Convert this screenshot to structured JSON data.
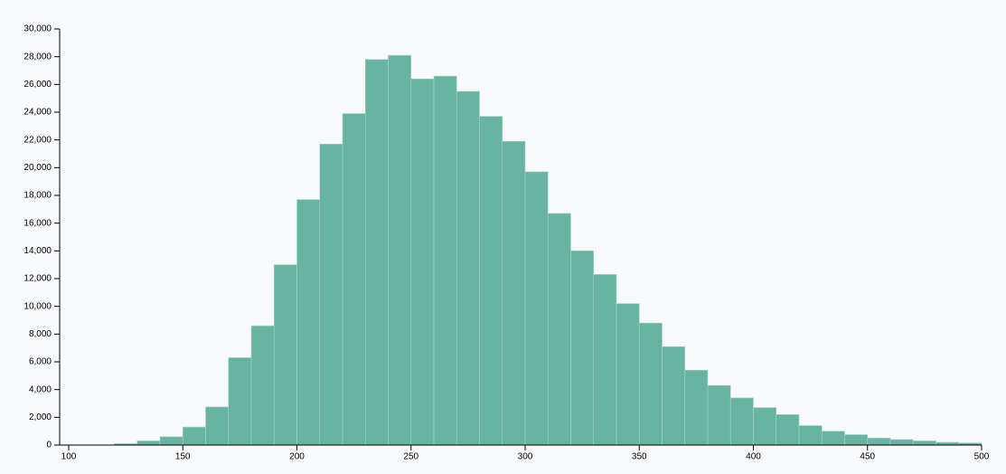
{
  "chart_data": {
    "type": "histogram",
    "bins": [
      120,
      130,
      140,
      150,
      160,
      170,
      180,
      190,
      200,
      210,
      220,
      230,
      240,
      250,
      260,
      270,
      280,
      290,
      300,
      310,
      320,
      330,
      340,
      350,
      360,
      370,
      380,
      390,
      400,
      410,
      420,
      430,
      440,
      450,
      460,
      470,
      480,
      490,
      500
    ],
    "values": [
      100,
      300,
      600,
      1300,
      2750,
      6300,
      8600,
      13000,
      17700,
      21700,
      23900,
      27800,
      28100,
      26400,
      26600,
      25500,
      23700,
      21900,
      19700,
      16700,
      14000,
      12300,
      10200,
      8800,
      7100,
      5400,
      4300,
      3400,
      2700,
      2200,
      1400,
      1000,
      750,
      500,
      400,
      300,
      200,
      150
    ],
    "color": "#69b3a2",
    "xlim": [
      100,
      500
    ],
    "xticks": [
      100,
      150,
      200,
      250,
      300,
      350,
      400,
      450,
      500
    ],
    "ylim": [
      0,
      30000
    ],
    "yticks": [
      0,
      {
        "value": 2000,
        "label": "2,000"
      },
      {
        "value": 4000,
        "label": "4,000"
      },
      {
        "value": 6000,
        "label": "6,000"
      },
      {
        "value": 8000,
        "label": "8,000"
      },
      {
        "value": 10000,
        "label": "10,000"
      },
      {
        "value": 12000,
        "label": "12,000"
      },
      {
        "value": 14000,
        "label": "14,000"
      },
      {
        "value": 16000,
        "label": "16,000"
      },
      {
        "value": 18000,
        "label": "18,000"
      },
      {
        "value": 20000,
        "label": "20,000"
      },
      {
        "value": 22000,
        "label": "22,000"
      },
      {
        "value": 24000,
        "label": "24,000"
      },
      {
        "value": 26000,
        "label": "26,000"
      },
      {
        "value": 28000,
        "label": "28,000"
      },
      {
        "value": 30000,
        "label": "30,000"
      }
    ]
  }
}
